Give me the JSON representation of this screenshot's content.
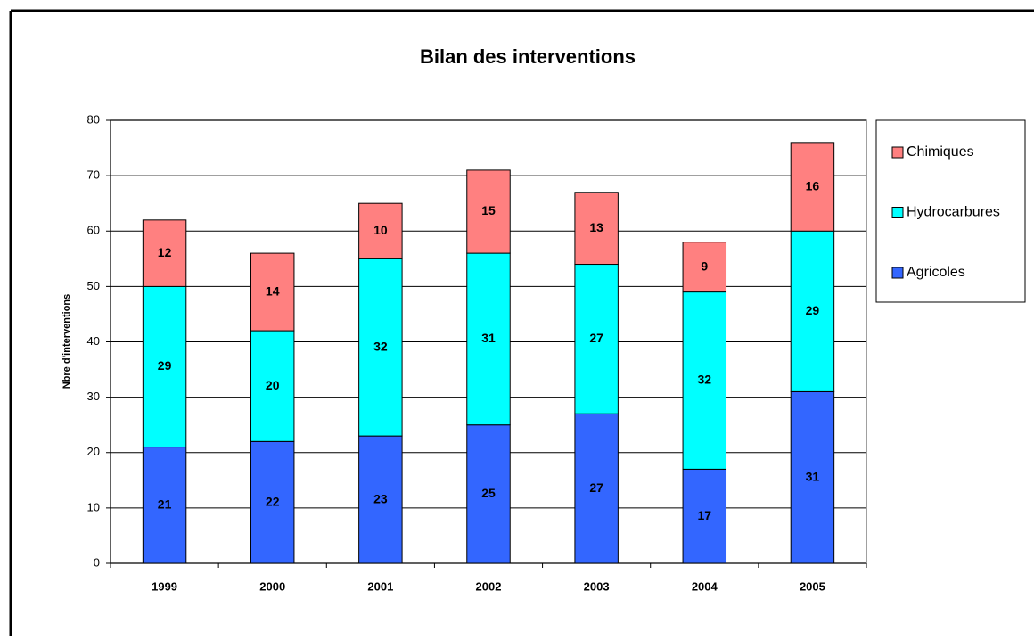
{
  "chart_data": {
    "type": "stacked_bar",
    "title": "Bilan des interventions",
    "y_label": "Nbre d'interventions",
    "categories": [
      "1999",
      "2000",
      "2001",
      "2002",
      "2003",
      "2004",
      "2005"
    ],
    "series": [
      {
        "name": "Agricoles",
        "color": "#3366ff",
        "values": [
          21,
          22,
          23,
          25,
          27,
          17,
          31
        ]
      },
      {
        "name": "Hydrocarbures",
        "color": "#00ffff",
        "values": [
          29,
          20,
          32,
          31,
          27,
          32,
          29
        ]
      },
      {
        "name": "Chimiques",
        "color": "#ff8080",
        "values": [
          12,
          14,
          10,
          15,
          13,
          9,
          16
        ]
      }
    ],
    "ylim": [
      0,
      80
    ],
    "yticks": [
      0,
      10,
      20,
      30,
      40,
      50,
      60,
      70,
      80
    ],
    "grid": true,
    "legend": "right"
  }
}
